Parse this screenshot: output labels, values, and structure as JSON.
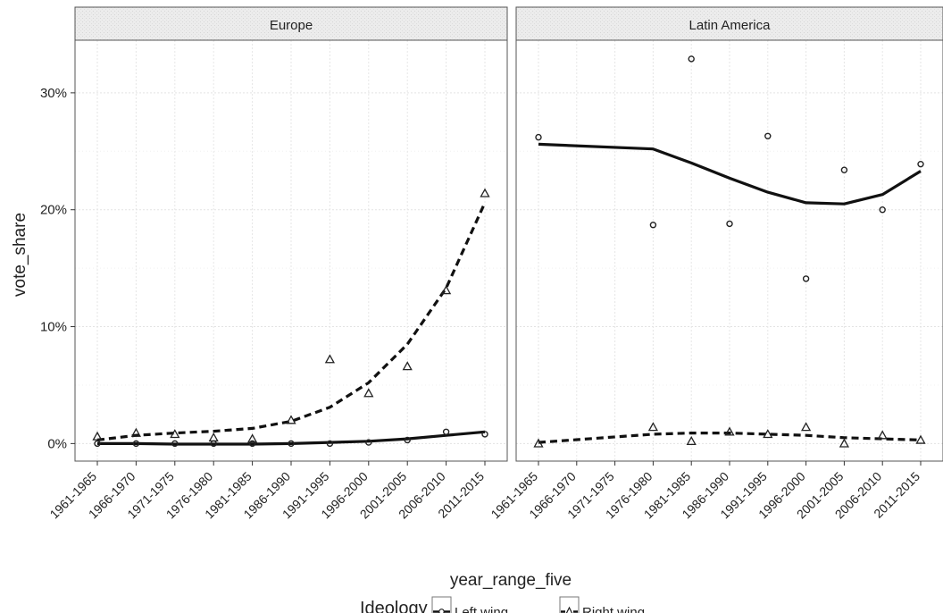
{
  "chart_data": {
    "type": "scatter",
    "facet_variable": "region",
    "xlabel": "year_range_five",
    "ylabel": "vote_share",
    "categories": [
      "1961-1965",
      "1966-1970",
      "1971-1975",
      "1976-1980",
      "1981-1985",
      "1986-1990",
      "1991-1995",
      "1996-2000",
      "2001-2005",
      "2006-2010",
      "2011-2015"
    ],
    "y_ticks": [
      0,
      10,
      20,
      30
    ],
    "y_tick_labels": [
      "0%",
      "10%",
      "20%",
      "30%"
    ],
    "ylim": [
      -1.5,
      34.5
    ],
    "grid": true,
    "legend": {
      "title": "Ideology",
      "position": "bottom",
      "entries": [
        {
          "label": "Left wing",
          "marker": "circle",
          "line": "solid"
        },
        {
          "label": "Right wing",
          "marker": "triangle",
          "line": "dashed"
        }
      ]
    },
    "panels": [
      {
        "title": "Europe",
        "series": [
          {
            "name": "Left wing",
            "points": [
              [
                0,
                0.0
              ],
              [
                1,
                0.0
              ],
              [
                2,
                0.0
              ],
              [
                3,
                0.0
              ],
              [
                4,
                0.0
              ],
              [
                5,
                0.0
              ],
              [
                6,
                0.0
              ],
              [
                7,
                0.1
              ],
              [
                8,
                0.3
              ],
              [
                9,
                1.0
              ],
              [
                10,
                0.8
              ]
            ],
            "trend": [
              [
                0,
                0.0
              ],
              [
                1,
                0.0
              ],
              [
                2,
                -0.05
              ],
              [
                3,
                -0.05
              ],
              [
                4,
                -0.05
              ],
              [
                5,
                0.0
              ],
              [
                6,
                0.1
              ],
              [
                7,
                0.2
              ],
              [
                8,
                0.4
              ],
              [
                9,
                0.7
              ],
              [
                10,
                1.0
              ]
            ]
          },
          {
            "name": "Right wing",
            "points": [
              [
                0,
                0.6
              ],
              [
                1,
                0.9
              ],
              [
                2,
                0.8
              ],
              [
                3,
                0.5
              ],
              [
                4,
                0.4
              ],
              [
                5,
                2.0
              ],
              [
                6,
                7.2
              ],
              [
                7,
                4.3
              ],
              [
                8,
                6.6
              ],
              [
                9,
                13.1
              ],
              [
                10,
                21.4
              ]
            ],
            "trend": [
              [
                0,
                0.3
              ],
              [
                1,
                0.7
              ],
              [
                2,
                0.9
              ],
              [
                3,
                1.05
              ],
              [
                4,
                1.3
              ],
              [
                5,
                1.9
              ],
              [
                6,
                3.1
              ],
              [
                7,
                5.2
              ],
              [
                8,
                8.5
              ],
              [
                9,
                13.3
              ],
              [
                10,
                20.6
              ]
            ]
          }
        ]
      },
      {
        "title": "Latin America",
        "series": [
          {
            "name": "Left wing",
            "points": [
              [
                0,
                26.2
              ],
              [
                3,
                18.7
              ],
              [
                4,
                32.9
              ],
              [
                5,
                18.8
              ],
              [
                6,
                26.3
              ],
              [
                7,
                14.1
              ],
              [
                8,
                23.4
              ],
              [
                9,
                20.0
              ],
              [
                10,
                23.9
              ]
            ],
            "trend": [
              [
                0,
                25.6
              ],
              [
                3,
                25.2
              ],
              [
                4,
                24.0
              ],
              [
                5,
                22.7
              ],
              [
                6,
                21.5
              ],
              [
                7,
                20.6
              ],
              [
                8,
                20.5
              ],
              [
                9,
                21.3
              ],
              [
                10,
                23.3
              ]
            ]
          },
          {
            "name": "Right wing",
            "points": [
              [
                0,
                0.0
              ],
              [
                3,
                1.4
              ],
              [
                4,
                0.2
              ],
              [
                5,
                1.0
              ],
              [
                6,
                0.8
              ],
              [
                7,
                1.4
              ],
              [
                8,
                0.0
              ],
              [
                9,
                0.7
              ],
              [
                10,
                0.3
              ]
            ],
            "trend": [
              [
                0,
                0.1
              ],
              [
                3,
                0.8
              ],
              [
                4,
                0.9
              ],
              [
                5,
                0.9
              ],
              [
                6,
                0.8
              ],
              [
                7,
                0.7
              ],
              [
                8,
                0.5
              ],
              [
                9,
                0.4
              ],
              [
                10,
                0.3
              ]
            ]
          }
        ]
      }
    ]
  }
}
